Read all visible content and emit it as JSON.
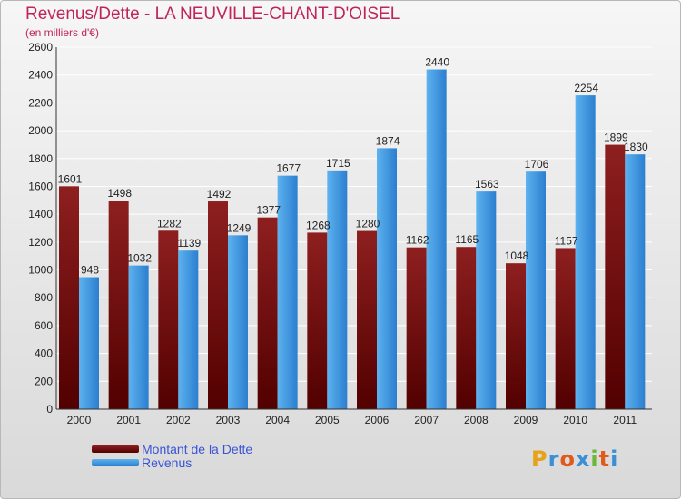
{
  "chart_data": {
    "type": "bar",
    "title": "Revenus/Dette - LA NEUVILLE-CHANT-D'OISEL",
    "subtitle": "(en milliers d'€)",
    "categories": [
      "2000",
      "2001",
      "2002",
      "2003",
      "2004",
      "2005",
      "2006",
      "2007",
      "2008",
      "2009",
      "2010",
      "2011"
    ],
    "series": [
      {
        "name": "Montant de la Dette",
        "color": "#7a0e0e",
        "values": [
          1601,
          1498,
          1282,
          1492,
          1377,
          1268,
          1280,
          1162,
          1165,
          1048,
          1157,
          1899
        ]
      },
      {
        "name": "Revenus",
        "color": "#4da3e8",
        "values": [
          948,
          1032,
          1139,
          1249,
          1677,
          1715,
          1874,
          2440,
          1563,
          1706,
          2254,
          1830
        ]
      }
    ],
    "ylim": [
      0,
      2600
    ],
    "yticks": [
      0,
      200,
      400,
      600,
      800,
      1000,
      1200,
      1400,
      1600,
      1800,
      2000,
      2200,
      2400,
      2600
    ],
    "grid": true,
    "legend_position": "bottom-left"
  },
  "logo": {
    "text": "Proxiti",
    "letters": [
      "P",
      "r",
      "o",
      "x",
      "i",
      "t",
      "i"
    ],
    "colors": [
      "#e8a21a",
      "#3a8fd6",
      "#e05a1a",
      "#3a8fd6",
      "#6cb83a",
      "#e05a1a",
      "#3a8fd6"
    ]
  }
}
